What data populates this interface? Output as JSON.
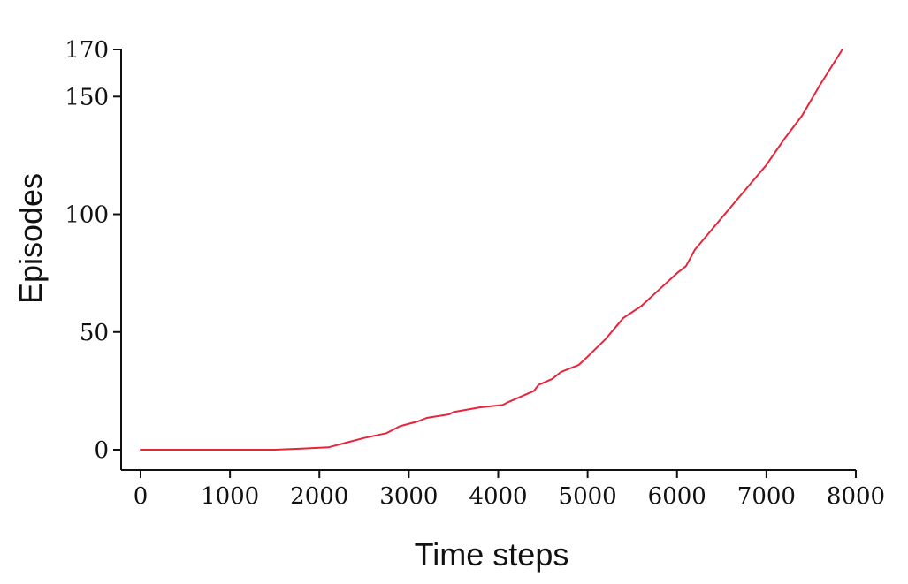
{
  "chart_data": {
    "type": "line",
    "title": "",
    "xlabel": "Time steps",
    "ylabel": "Episodes",
    "xlim": [
      -200,
      8000
    ],
    "ylim": [
      -8,
      170
    ],
    "x_ticks": [
      0,
      1000,
      2000,
      3000,
      4000,
      5000,
      6000,
      7000,
      8000
    ],
    "y_ticks": [
      0,
      50,
      100,
      150,
      170
    ],
    "grid": false,
    "colors": {
      "series": "#e8243a",
      "axis": "#111111"
    },
    "series": [
      {
        "x": [
          0,
          500,
          1000,
          1500,
          1800,
          2100,
          2300,
          2500,
          2750,
          2900,
          3100,
          3200,
          3450,
          3500,
          3800,
          4050,
          4100,
          4400,
          4450,
          4600,
          4700,
          4900,
          5000,
          5200,
          5400,
          5600,
          5800,
          6000,
          6100,
          6200,
          6400,
          6600,
          6800,
          7000,
          7200,
          7400,
          7600,
          7850
        ],
        "y": [
          0,
          0,
          0,
          0,
          0.5,
          1,
          3,
          5,
          7,
          10,
          12,
          13.5,
          15,
          16,
          18,
          19,
          20,
          25,
          27.5,
          30,
          33,
          36,
          39.5,
          47,
          56,
          61,
          68,
          75,
          78,
          85,
          94,
          103,
          112,
          121,
          132,
          142,
          155,
          170
        ]
      }
    ]
  }
}
